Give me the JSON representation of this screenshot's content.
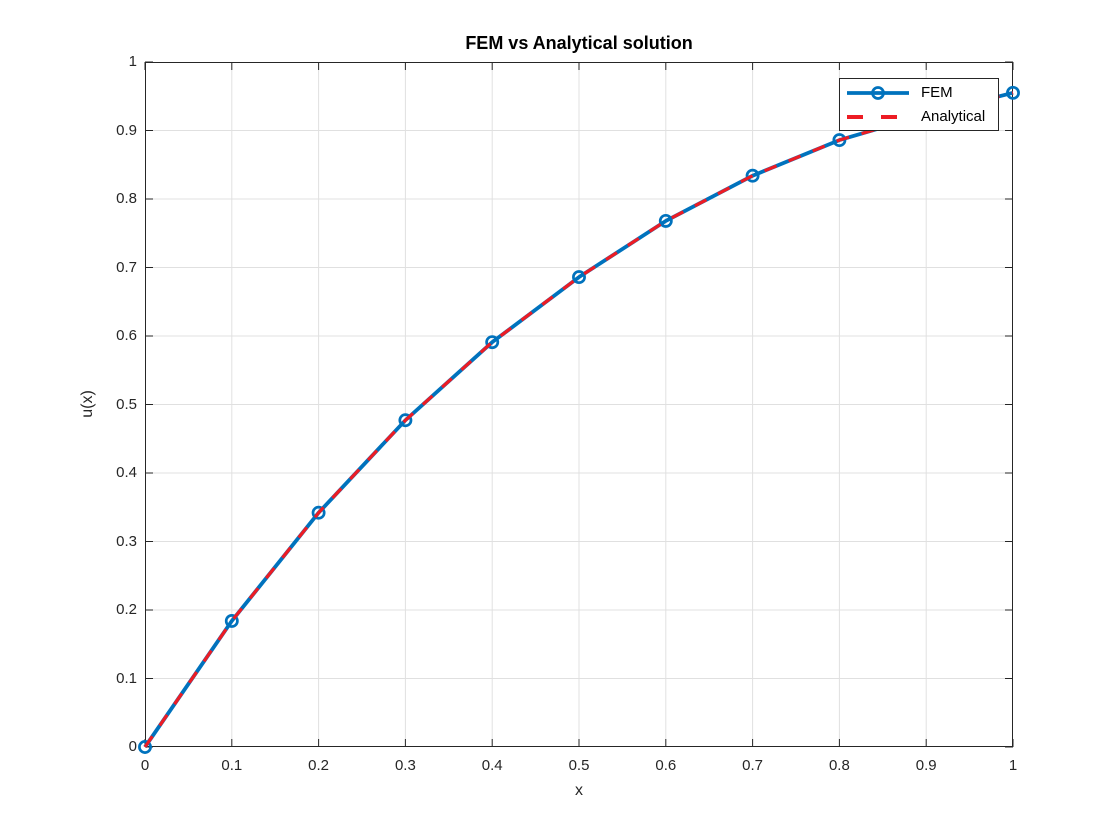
{
  "figure": {
    "background": "#ffffff"
  },
  "chart_data": {
    "type": "line",
    "title": "FEM vs Analytical solution",
    "xlabel": "x",
    "ylabel": "u(x)",
    "xlim": [
      0,
      1
    ],
    "ylim": [
      0,
      1
    ],
    "grid": true,
    "axis_color": "#262626",
    "grid_color": "#e0e0e0",
    "legend_position": "top-right",
    "x_tick_values": [
      0,
      0.1,
      0.2,
      0.3,
      0.4,
      0.5,
      0.6,
      0.7,
      0.8,
      0.9,
      1
    ],
    "x_tick_labels": [
      "0",
      "0.1",
      "0.2",
      "0.3",
      "0.4",
      "0.5",
      "0.6",
      "0.7",
      "0.8",
      "0.9",
      "1"
    ],
    "y_tick_values": [
      0,
      0.1,
      0.2,
      0.3,
      0.4,
      0.5,
      0.6,
      0.7,
      0.8,
      0.9,
      1
    ],
    "y_tick_labels": [
      "0",
      "0.1",
      "0.2",
      "0.3",
      "0.4",
      "0.5",
      "0.6",
      "0.7",
      "0.8",
      "0.9",
      "1"
    ],
    "x": [
      0,
      0.1,
      0.2,
      0.3,
      0.4,
      0.5,
      0.6,
      0.7,
      0.8,
      0.9,
      1.0
    ],
    "series": [
      {
        "name": "FEM",
        "color": "#0072bd",
        "line_style": "solid",
        "marker": "circle",
        "values": [
          0,
          0.184,
          0.342,
          0.477,
          0.591,
          0.686,
          0.768,
          0.834,
          0.886,
          0.923,
          0.955
        ]
      },
      {
        "name": "Analytical",
        "color": "#ed1c24",
        "line_style": "dashed",
        "marker": "none",
        "values": [
          0,
          0.184,
          0.342,
          0.477,
          0.591,
          0.686,
          0.768,
          0.834,
          0.886,
          0.923,
          0.955
        ]
      }
    ]
  }
}
